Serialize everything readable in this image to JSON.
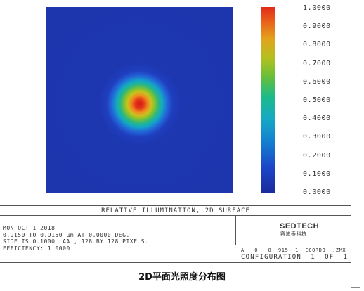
{
  "colorbar": {
    "ticks": [
      "1.0000",
      "0.9000",
      "0.8000",
      "0.7000",
      "0.6000",
      "0.5000",
      "0.4000",
      "0.3000",
      "0.2000",
      "0.1000",
      "0.0000"
    ]
  },
  "frame": {
    "title": "RELATIVE ILLUMINATION, 2D SURFACE",
    "info": [
      "MON OCT 1 2018",
      "0.9150 TO 0.9150 µm AT 0.0000 DEG.",
      "SIDE IS 0.1000  AA , 128 BY 128 PIXELS.",
      "EFFICIENCY: 1.0000"
    ],
    "logo": "SEDTECH",
    "logo_sub": "赛迪泰科技",
    "codes": "A   0   0  915- 1  CCORDO  .ZMX",
    "config": "CONFIGURATION  1  OF  1"
  },
  "caption": "2D平面光照度分布图",
  "colors": {
    "background_field": "#1d36ad",
    "peak": "#d61a10"
  }
}
